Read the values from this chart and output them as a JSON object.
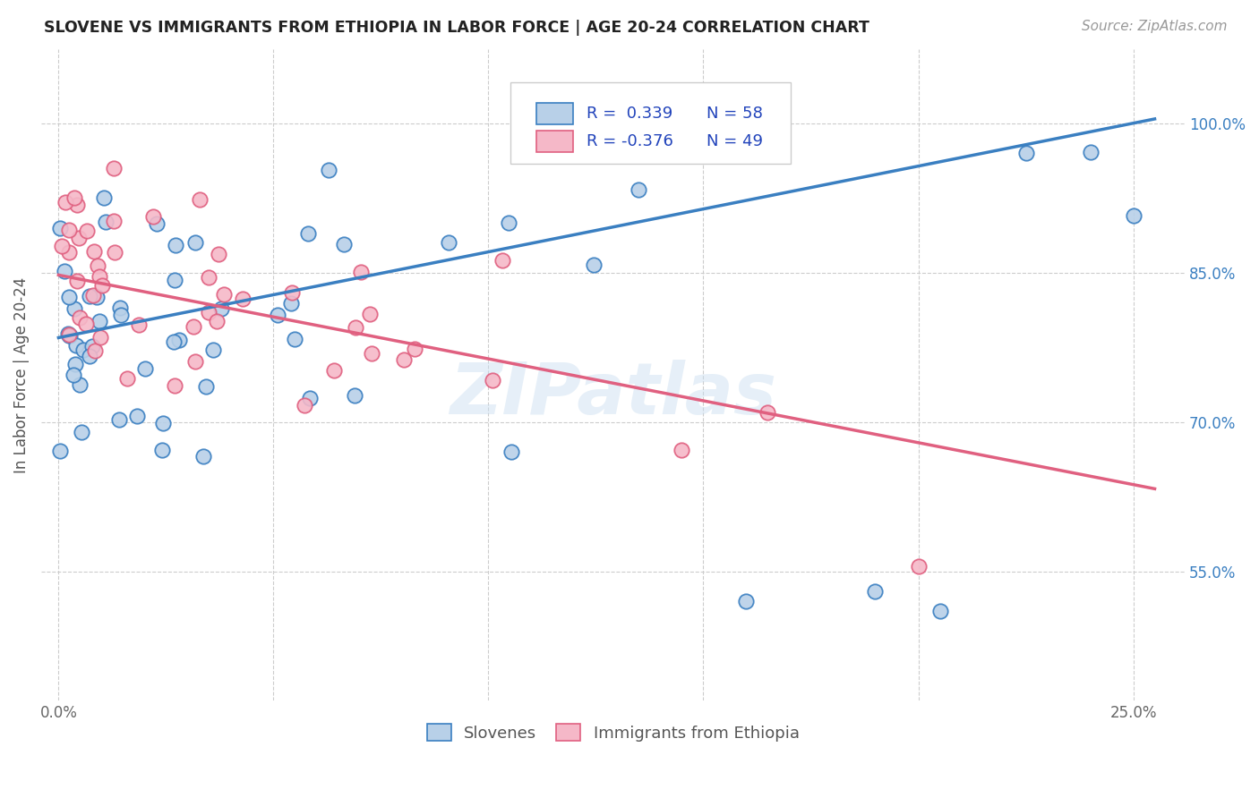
{
  "title": "SLOVENE VS IMMIGRANTS FROM ETHIOPIA IN LABOR FORCE | AGE 20-24 CORRELATION CHART",
  "source": "Source: ZipAtlas.com",
  "ylabel": "In Labor Force | Age 20-24",
  "x_tick_positions": [
    0.0,
    0.05,
    0.1,
    0.15,
    0.2,
    0.25
  ],
  "x_tick_labels": [
    "0.0%",
    "",
    "",
    "",
    "",
    "25.0%"
  ],
  "y_tick_positions": [
    0.55,
    0.7,
    0.85,
    1.0
  ],
  "y_tick_labels": [
    "55.0%",
    "70.0%",
    "85.0%",
    "100.0%"
  ],
  "xlim": [
    -0.004,
    0.262
  ],
  "ylim": [
    0.42,
    1.075
  ],
  "legend_R1": "0.339",
  "legend_N1": "58",
  "legend_R2": "-0.376",
  "legend_N2": "49",
  "color_blue": "#b8d0e8",
  "color_pink": "#f5b8c8",
  "line_color_blue": "#3a7fc1",
  "line_color_pink": "#e06080",
  "legend_text_color": "#2244bb",
  "watermark": "ZIPatlas",
  "blue_line_x0": 0.0,
  "blue_line_y0": 0.785,
  "blue_line_x1": 0.255,
  "blue_line_y1": 1.005,
  "pink_line_x0": 0.0,
  "pink_line_y0": 0.848,
  "pink_line_x1": 0.255,
  "pink_line_y1": 0.633
}
